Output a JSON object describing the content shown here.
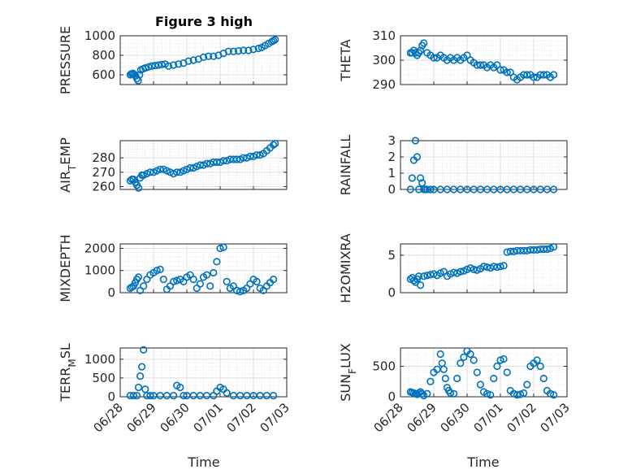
{
  "figure": {
    "title": "Figure 3 high",
    "xlabel": "Time"
  },
  "x_ticks": [
    "06/28",
    "06/29",
    "06/30",
    "07/01",
    "07/02",
    "07/03"
  ],
  "colors": {
    "marker": "#0072BD",
    "axes": "#262626",
    "grid": "#dfdfdf"
  },
  "chart_data": [
    {
      "type": "scatter",
      "ylabel": "PRESSURE",
      "ylabel_sub": "",
      "ylim": [
        500,
        1000
      ],
      "yticks": [
        600,
        800,
        1000
      ],
      "xlim": [
        0,
        5
      ],
      "x": [
        0.3,
        0.34,
        0.38,
        0.42,
        0.46,
        0.5,
        0.54,
        0.58,
        0.62,
        0.68,
        0.75,
        0.85,
        0.95,
        1.05,
        1.15,
        1.25,
        1.35,
        1.45,
        1.6,
        1.75,
        1.9,
        2.05,
        2.2,
        2.35,
        2.5,
        2.65,
        2.8,
        2.95,
        3.1,
        3.25,
        3.4,
        3.55,
        3.7,
        3.85,
        4.0,
        4.15,
        4.25,
        4.35,
        4.45,
        4.55,
        4.6,
        4.65
      ],
      "y": [
        600,
        610,
        615,
        605,
        590,
        560,
        540,
        600,
        650,
        660,
        670,
        680,
        690,
        695,
        700,
        705,
        710,
        690,
        700,
        710,
        720,
        740,
        750,
        760,
        780,
        790,
        790,
        800,
        820,
        840,
        840,
        845,
        850,
        850,
        860,
        870,
        880,
        900,
        920,
        940,
        950,
        960
      ]
    },
    {
      "type": "scatter",
      "ylabel": "THETA",
      "ylabel_sub": "",
      "ylim": [
        290,
        310
      ],
      "yticks": [
        290,
        300,
        310
      ],
      "xlim": [
        0,
        5
      ],
      "x": [
        0.3,
        0.35,
        0.4,
        0.45,
        0.5,
        0.55,
        0.6,
        0.65,
        0.7,
        0.8,
        0.9,
        1.0,
        1.1,
        1.2,
        1.3,
        1.4,
        1.5,
        1.6,
        1.7,
        1.8,
        1.9,
        2.0,
        2.1,
        2.2,
        2.3,
        2.4,
        2.5,
        2.6,
        2.7,
        2.8,
        2.9,
        3.0,
        3.1,
        3.2,
        3.3,
        3.4,
        3.5,
        3.6,
        3.7,
        3.8,
        3.9,
        4.0,
        4.1,
        4.2,
        4.3,
        4.4,
        4.5,
        4.6
      ],
      "y": [
        303,
        303,
        304,
        303,
        302,
        303,
        304,
        306,
        307,
        303,
        302,
        301,
        301,
        302,
        301,
        300,
        301,
        300,
        301,
        300,
        301,
        302,
        300,
        299,
        298,
        298,
        298,
        297,
        298,
        297,
        298,
        296,
        296,
        295,
        295,
        293,
        292,
        293,
        294,
        294,
        294,
        293,
        293,
        294,
        294,
        294,
        293,
        294
      ]
    },
    {
      "type": "scatter",
      "ylabel": "AIR",
      "ylabel_sub": "T",
      "ylabel_tail": "EMP",
      "ylim": [
        258,
        292
      ],
      "yticks": [
        260,
        270,
        280
      ],
      "xlim": [
        0,
        5
      ],
      "x": [
        0.3,
        0.35,
        0.4,
        0.45,
        0.5,
        0.55,
        0.6,
        0.65,
        0.7,
        0.8,
        0.9,
        1.0,
        1.1,
        1.2,
        1.3,
        1.4,
        1.5,
        1.6,
        1.7,
        1.8,
        1.9,
        2.0,
        2.1,
        2.2,
        2.3,
        2.4,
        2.5,
        2.6,
        2.7,
        2.8,
        2.9,
        3.0,
        3.1,
        3.2,
        3.3,
        3.4,
        3.5,
        3.6,
        3.7,
        3.8,
        3.9,
        4.0,
        4.1,
        4.2,
        4.3,
        4.4,
        4.5,
        4.6,
        4.65
      ],
      "y": [
        264,
        265,
        265,
        263,
        261,
        259,
        266,
        268,
        268,
        269,
        270,
        270,
        271,
        272,
        272,
        271,
        270,
        269,
        270,
        270,
        271,
        272,
        273,
        273,
        274,
        275,
        275,
        276,
        276,
        277,
        277,
        277,
        278,
        278,
        279,
        279,
        279,
        279,
        280,
        280,
        281,
        281,
        282,
        282,
        283,
        285,
        287,
        289,
        290
      ]
    },
    {
      "type": "scatter",
      "ylabel": "RAINFALL",
      "ylabel_sub": "",
      "ylim": [
        0,
        3
      ],
      "yticks": [
        0,
        1,
        2,
        3
      ],
      "xlim": [
        0,
        5
      ],
      "x": [
        0.3,
        0.35,
        0.4,
        0.45,
        0.5,
        0.55,
        0.6,
        0.65,
        0.7,
        0.75,
        0.8,
        0.9,
        1.0,
        1.2,
        1.4,
        1.6,
        1.8,
        2.0,
        2.2,
        2.4,
        2.6,
        2.8,
        3.0,
        3.2,
        3.4,
        3.6,
        3.8,
        4.0,
        4.2,
        4.4,
        4.6
      ],
      "y": [
        0,
        0.7,
        1.8,
        3.0,
        2.0,
        0,
        0.7,
        0.4,
        0,
        0,
        0,
        0,
        0,
        0,
        0,
        0,
        0,
        0,
        0,
        0,
        0,
        0,
        0,
        0,
        0,
        0,
        0,
        0,
        0,
        0,
        0
      ]
    },
    {
      "type": "scatter",
      "ylabel": "MIXDEPTH",
      "ylabel_sub": "",
      "ylim": [
        0,
        2200
      ],
      "yticks": [
        0,
        1000,
        2000
      ],
      "xlim": [
        0,
        5
      ],
      "x": [
        0.3,
        0.35,
        0.4,
        0.45,
        0.5,
        0.55,
        0.6,
        0.7,
        0.8,
        0.9,
        1.0,
        1.1,
        1.2,
        1.3,
        1.4,
        1.5,
        1.6,
        1.7,
        1.8,
        1.9,
        2.0,
        2.1,
        2.2,
        2.3,
        2.4,
        2.5,
        2.6,
        2.7,
        2.8,
        2.9,
        3.0,
        3.1,
        3.2,
        3.3,
        3.4,
        3.5,
        3.6,
        3.7,
        3.8,
        3.9,
        4.0,
        4.1,
        4.2,
        4.3,
        4.4,
        4.5,
        4.6
      ],
      "y": [
        200,
        250,
        300,
        450,
        600,
        700,
        100,
        300,
        600,
        800,
        900,
        1000,
        1050,
        600,
        150,
        300,
        500,
        550,
        600,
        500,
        700,
        800,
        600,
        200,
        400,
        700,
        800,
        300,
        900,
        1400,
        2000,
        2050,
        500,
        200,
        300,
        100,
        50,
        100,
        200,
        400,
        600,
        500,
        200,
        100,
        300,
        450,
        600
      ]
    },
    {
      "type": "scatter",
      "ylabel": "H2OMIXRA",
      "ylabel_sub": "",
      "ylim": [
        0,
        6.5
      ],
      "yticks": [
        0,
        5
      ],
      "xlim": [
        0,
        5
      ],
      "x": [
        0.3,
        0.35,
        0.4,
        0.45,
        0.5,
        0.55,
        0.6,
        0.7,
        0.8,
        0.9,
        1.0,
        1.1,
        1.2,
        1.3,
        1.4,
        1.5,
        1.6,
        1.7,
        1.8,
        1.9,
        2.0,
        2.1,
        2.2,
        2.3,
        2.4,
        2.5,
        2.6,
        2.7,
        2.8,
        2.9,
        3.0,
        3.1,
        3.2,
        3.3,
        3.4,
        3.5,
        3.6,
        3.7,
        3.8,
        3.9,
        4.0,
        4.1,
        4.2,
        4.3,
        4.4,
        4.5,
        4.6
      ],
      "y": [
        1.8,
        2.0,
        1.6,
        1.4,
        1.8,
        2.2,
        1.0,
        2.2,
        2.3,
        2.4,
        2.5,
        2.3,
        2.6,
        2.8,
        2.2,
        2.5,
        2.7,
        2.6,
        2.8,
        2.9,
        3.1,
        3.3,
        3.1,
        3.0,
        3.2,
        3.5,
        3.4,
        3.3,
        3.5,
        3.4,
        3.5,
        3.6,
        5.4,
        5.5,
        5.5,
        5.6,
        5.6,
        5.6,
        5.6,
        5.7,
        5.7,
        5.7,
        5.8,
        5.8,
        5.8,
        5.9,
        6.1
      ]
    },
    {
      "type": "scatter",
      "ylabel": "TERR",
      "ylabel_sub": "M",
      "ylabel_tail": "SL",
      "ylim": [
        0,
        1300
      ],
      "yticks": [
        0,
        500,
        1000
      ],
      "xlim": [
        0,
        5
      ],
      "x": [
        0.3,
        0.4,
        0.5,
        0.55,
        0.6,
        0.65,
        0.7,
        0.75,
        0.8,
        0.9,
        1.0,
        1.2,
        1.4,
        1.6,
        1.7,
        1.8,
        1.9,
        2.0,
        2.2,
        2.4,
        2.6,
        2.8,
        2.9,
        3.0,
        3.1,
        3.2,
        3.4,
        3.6,
        3.8,
        4.0,
        4.2,
        4.4,
        4.6
      ],
      "y": [
        30,
        30,
        30,
        250,
        550,
        800,
        1250,
        200,
        30,
        30,
        30,
        30,
        30,
        30,
        300,
        250,
        30,
        30,
        30,
        30,
        30,
        30,
        150,
        250,
        200,
        100,
        30,
        30,
        30,
        30,
        30,
        30,
        30
      ]
    },
    {
      "type": "scatter",
      "ylabel": "SUN",
      "ylabel_sub": "F",
      "ylabel_tail": "LUX",
      "ylim": [
        0,
        800
      ],
      "yticks": [
        0,
        500
      ],
      "xlim": [
        0,
        5
      ],
      "x": [
        0.3,
        0.35,
        0.4,
        0.45,
        0.5,
        0.55,
        0.6,
        0.65,
        0.7,
        0.8,
        0.9,
        1.0,
        1.1,
        1.2,
        1.25,
        1.3,
        1.35,
        1.4,
        1.45,
        1.5,
        1.6,
        1.7,
        1.8,
        1.9,
        2.0,
        2.1,
        2.2,
        2.3,
        2.4,
        2.5,
        2.6,
        2.7,
        2.8,
        2.9,
        3.0,
        3.1,
        3.2,
        3.3,
        3.4,
        3.5,
        3.6,
        3.7,
        3.8,
        3.9,
        4.0,
        4.1,
        4.2,
        4.3,
        4.4,
        4.5,
        4.6
      ],
      "y": [
        80,
        70,
        60,
        50,
        40,
        60,
        80,
        50,
        20,
        50,
        250,
        400,
        450,
        700,
        550,
        450,
        300,
        150,
        100,
        60,
        50,
        300,
        550,
        650,
        750,
        700,
        600,
        400,
        200,
        80,
        50,
        30,
        300,
        500,
        600,
        620,
        400,
        100,
        50,
        30,
        40,
        60,
        200,
        500,
        550,
        600,
        500,
        300,
        100,
        50,
        30
      ]
    }
  ]
}
